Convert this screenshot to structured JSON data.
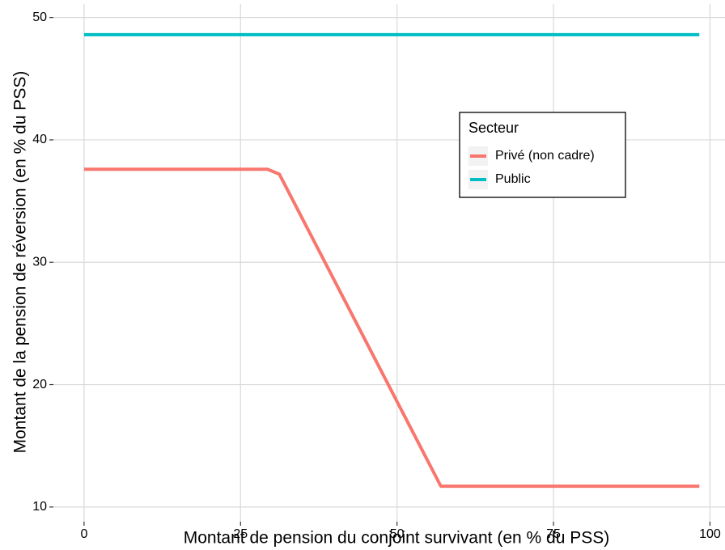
{
  "chart_data": {
    "type": "line",
    "x_label": "Montant de pension du conjoint survivant (en % du PSS)",
    "y_label": "Montant de la pension de réversion (en % du PSS)",
    "xlim": [
      -4.9,
      102.4
    ],
    "ylim": [
      8.8,
      51.1
    ],
    "xticks": [
      0,
      25,
      50,
      75,
      100
    ],
    "yticks": [
      10,
      20,
      30,
      40,
      50
    ],
    "grid": true,
    "legend_title": "Secteur",
    "legend_position": "top right",
    "series": [
      {
        "name": "Privé (non cadre)",
        "color": "#f8766d",
        "x": [
          0,
          29.3,
          31.2,
          57,
          98.3
        ],
        "values": [
          37.6,
          37.6,
          37.2,
          11.7,
          11.7
        ]
      },
      {
        "name": "Public",
        "color": "#00bfc4",
        "x": [
          0,
          98.3
        ],
        "values": [
          48.6,
          48.6
        ]
      }
    ]
  }
}
